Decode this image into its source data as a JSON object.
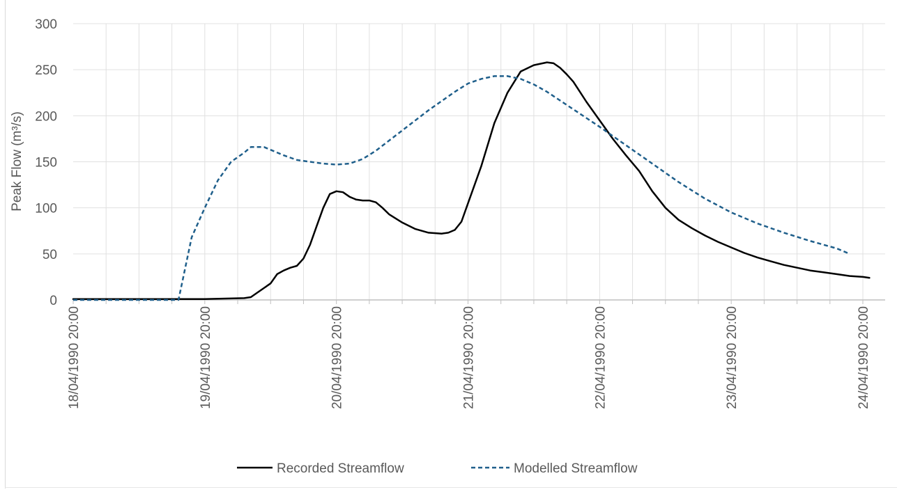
{
  "chart_data": {
    "type": "line",
    "title": "",
    "ylabel": "Peak Flow (m³/s)",
    "xlabel": "",
    "ylim": [
      0,
      300
    ],
    "y_ticks": [
      0,
      50,
      100,
      150,
      200,
      250,
      300
    ],
    "x_range_days": [
      0,
      6.05
    ],
    "x_tick_labels": [
      "18/04/1990 20:00",
      "19/04/1990 20:00",
      "20/04/1990 20:00",
      "21/04/1990 20:00",
      "22/04/1990 20:00",
      "23/04/1990 20:00",
      "24/04/1990 20:00"
    ],
    "grid": true,
    "legend_position": "bottom",
    "series": [
      {
        "name": "Recorded Streamflow",
        "color": "#000000",
        "dash": "solid",
        "x": [
          0,
          0.5,
          1.0,
          1.3,
          1.35,
          1.4,
          1.5,
          1.55,
          1.6,
          1.65,
          1.7,
          1.75,
          1.8,
          1.85,
          1.9,
          1.95,
          2.0,
          2.05,
          2.1,
          2.15,
          2.2,
          2.25,
          2.3,
          2.35,
          2.4,
          2.5,
          2.6,
          2.7,
          2.8,
          2.85,
          2.9,
          2.95,
          3.0,
          3.1,
          3.2,
          3.3,
          3.4,
          3.5,
          3.6,
          3.65,
          3.7,
          3.75,
          3.8,
          3.9,
          4.0,
          4.1,
          4.2,
          4.3,
          4.4,
          4.5,
          4.6,
          4.7,
          4.8,
          4.9,
          5.0,
          5.1,
          5.2,
          5.3,
          5.4,
          5.5,
          5.6,
          5.7,
          5.8,
          5.9,
          6.0,
          6.05
        ],
        "values": [
          1,
          1,
          1,
          2,
          3,
          8,
          18,
          28,
          32,
          35,
          37,
          45,
          60,
          80,
          100,
          115,
          118,
          117,
          112,
          109,
          108,
          108,
          106,
          100,
          93,
          84,
          77,
          73,
          72,
          73,
          76,
          85,
          105,
          145,
          192,
          225,
          248,
          255,
          258,
          257,
          252,
          245,
          237,
          215,
          195,
          175,
          157,
          140,
          118,
          100,
          87,
          78,
          70,
          63,
          57,
          51,
          46,
          42,
          38,
          35,
          32,
          30,
          28,
          26,
          25,
          24
        ]
      },
      {
        "name": "Modelled Streamflow",
        "color": "#1f5f8b",
        "dash": "dashed",
        "x": [
          0,
          0.5,
          0.8,
          0.9,
          1.0,
          1.1,
          1.2,
          1.3,
          1.35,
          1.45,
          1.5,
          1.6,
          1.7,
          1.8,
          1.9,
          2.0,
          2.1,
          2.2,
          2.3,
          2.5,
          2.7,
          2.9,
          3.0,
          3.1,
          3.2,
          3.3,
          3.4,
          3.5,
          3.6,
          3.8,
          4.0,
          4.2,
          4.4,
          4.6,
          4.8,
          5.0,
          5.2,
          5.4,
          5.6,
          5.8,
          5.9
        ],
        "values": [
          0,
          0,
          0,
          68,
          100,
          130,
          150,
          160,
          166,
          166,
          163,
          157,
          152,
          150,
          148,
          147,
          148,
          153,
          162,
          184,
          206,
          226,
          235,
          240,
          243,
          243,
          240,
          234,
          226,
          207,
          188,
          168,
          148,
          128,
          110,
          95,
          83,
          73,
          64,
          56,
          50
        ]
      }
    ]
  }
}
